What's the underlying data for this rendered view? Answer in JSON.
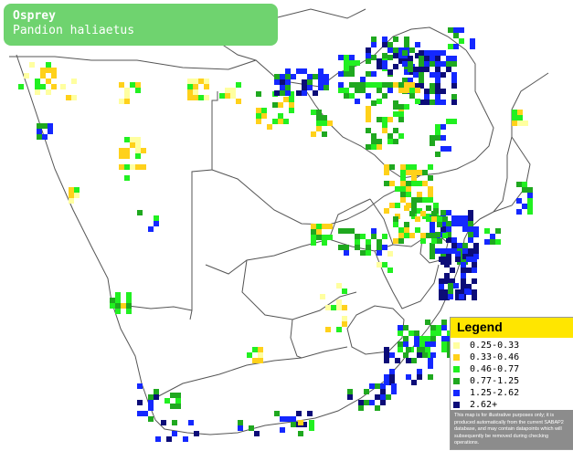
{
  "title": {
    "common_name": "Osprey",
    "scientific_name": "Pandion haliaetus"
  },
  "legend": {
    "title": "Legend",
    "items": [
      {
        "label": "0.25-0.33",
        "color": "#ffffa0"
      },
      {
        "label": "0.33-0.46",
        "color": "#ffd11a"
      },
      {
        "label": "0.46-0.77",
        "color": "#21f021"
      },
      {
        "label": "0.77-1.25",
        "color": "#1fa81f"
      },
      {
        "label": "1.25-2.62",
        "color": "#1428ff"
      },
      {
        "label": "2.62+",
        "color": "#0c0c78"
      }
    ],
    "note": "This map is for illustrative purposes only; it is produced automatically from the current SABAP2 database, and may contain datapoints which will subsequently be removed during checking operations."
  },
  "colors": {
    "title_box": "#6fd36f",
    "legend_header": "#ffe600",
    "border_lines": "#555555"
  }
}
